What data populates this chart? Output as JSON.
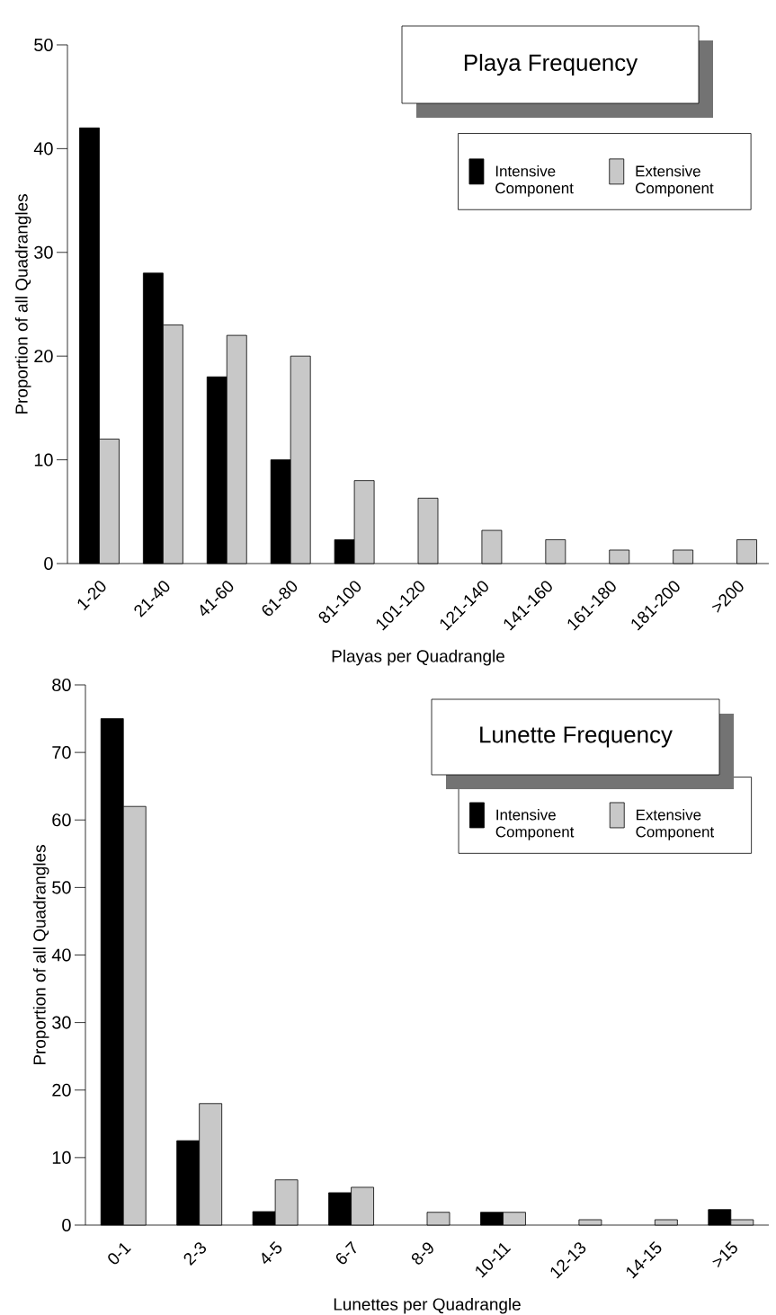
{
  "chart_data": [
    {
      "type": "bar",
      "title": "Playa Frequency",
      "xlabel": "Playas per Quadrangle",
      "ylabel": "Proportion of all Quadrangles",
      "categories": [
        "1-20",
        "21-40",
        "41-60",
        "61-80",
        "81-100",
        "101-120",
        "121-140",
        "141-160",
        "161-180",
        "181-200",
        ">200"
      ],
      "series": [
        {
          "name": "Intensive Component",
          "color": "#000000",
          "values": [
            42,
            28,
            18,
            10,
            2.3,
            null,
            null,
            null,
            null,
            null,
            null
          ]
        },
        {
          "name": "Extensive Component",
          "color": "#c8c8c8",
          "values": [
            12,
            23,
            22,
            20,
            8,
            6.3,
            3.2,
            2.3,
            1.3,
            1.3,
            2.3
          ]
        }
      ],
      "ylim": [
        0,
        50
      ],
      "yticks": [
        0,
        10,
        20,
        30,
        40,
        50
      ],
      "legend": "top right"
    },
    {
      "type": "bar",
      "title": "Lunette Frequency",
      "xlabel": "Lunettes per Quadrangle",
      "ylabel": "Proportion of all Quadrangles",
      "categories": [
        "0-1",
        "2-3",
        "4-5",
        "6-7",
        "8-9",
        "10-11",
        "12-13",
        "14-15",
        ">15"
      ],
      "series": [
        {
          "name": "Intensive Component",
          "color": "#000000",
          "values": [
            75,
            12.5,
            2,
            4.8,
            null,
            1.9,
            null,
            null,
            2.3
          ]
        },
        {
          "name": "Extensive Component",
          "color": "#c8c8c8",
          "values": [
            62,
            18,
            6.7,
            5.6,
            1.9,
            1.9,
            0.8,
            0.8,
            0.8
          ]
        }
      ],
      "ylim": [
        0,
        80
      ],
      "yticks": [
        0,
        10,
        20,
        30,
        40,
        50,
        60,
        70,
        80
      ],
      "legend": "top right"
    }
  ]
}
